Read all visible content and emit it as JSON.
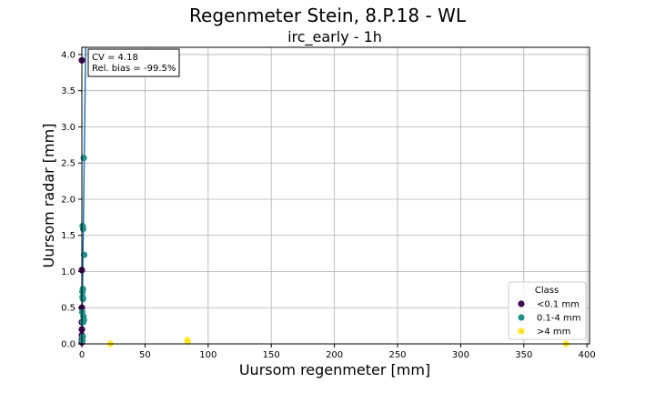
{
  "chart_data": {
    "type": "scatter",
    "title": "Regenmeter Stein, 8.P.18 - WL",
    "subtitle": "irc_early - 1h",
    "xlabel": "Uursom regenmeter [mm]",
    "ylabel": "Uursom radar [mm]",
    "xlim": [
      0,
      402
    ],
    "ylim": [
      0,
      4.1
    ],
    "xticks": [
      0,
      50,
      100,
      150,
      200,
      250,
      300,
      350,
      400
    ],
    "yticks": [
      0.0,
      0.5,
      1.0,
      1.5,
      2.0,
      2.5,
      3.0,
      3.5,
      4.0
    ],
    "grid": true,
    "stats": {
      "cv": "CV = 4.18",
      "bias": "Rel. bias = -99.5%"
    },
    "fit_line": [
      [
        0,
        0
      ],
      [
        3,
        4.1
      ]
    ],
    "legend": {
      "title": "Class",
      "position": "lower-right",
      "entries": [
        {
          "label": "<0.1 mm",
          "color": "#440154"
        },
        {
          "label": "0.1-4 mm",
          "color": "#21918c"
        },
        {
          "label": ">4 mm",
          "color": "#fde725"
        }
      ]
    },
    "series": [
      {
        "name": "<0.1 mm",
        "color": "#440154",
        "points": [
          [
            0.0,
            3.92
          ],
          [
            0.0,
            1.02
          ],
          [
            0.0,
            0.5
          ],
          [
            0.0,
            0.3
          ],
          [
            0.0,
            0.2
          ],
          [
            0.0,
            0.12
          ],
          [
            0.0,
            0.06
          ],
          [
            0.0,
            0.02
          ]
        ]
      },
      {
        "name": "0.1-4 mm",
        "color": "#21918c",
        "points": [
          [
            1.5,
            2.57
          ],
          [
            0.6,
            1.63
          ],
          [
            1.0,
            1.59
          ],
          [
            1.8,
            1.23
          ],
          [
            0.8,
            0.76
          ],
          [
            0.5,
            0.72
          ],
          [
            0.6,
            0.65
          ],
          [
            0.9,
            0.62
          ],
          [
            0.3,
            0.44
          ],
          [
            1.2,
            0.38
          ],
          [
            1.6,
            0.33
          ],
          [
            1.0,
            0.3
          ],
          [
            0.7,
            0.1
          ],
          [
            0.4,
            0.05
          ]
        ]
      },
      {
        "name": ">4 mm",
        "color": "#fde725",
        "points": [
          [
            22.5,
            0.0
          ],
          [
            83.5,
            0.05
          ],
          [
            83.8,
            0.03
          ],
          [
            383.5,
            0.0
          ]
        ]
      }
    ]
  }
}
